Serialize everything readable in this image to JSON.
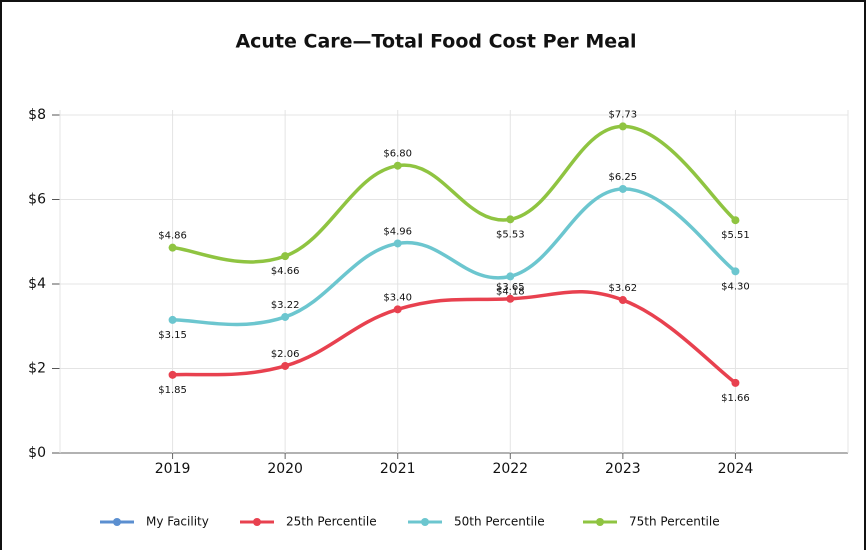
{
  "chart_data": {
    "type": "line",
    "title": "Acute Care—Total Food Cost Per Meal",
    "categories": [
      "2019",
      "2020",
      "2021",
      "2022",
      "2023",
      "2024"
    ],
    "ylim": [
      0,
      8
    ],
    "yticks": [
      {
        "value": 0,
        "label": "$0"
      },
      {
        "value": 2,
        "label": "$2"
      },
      {
        "value": 4,
        "label": "$4"
      },
      {
        "value": 6,
        "label": "$6"
      },
      {
        "value": 8,
        "label": "$8"
      }
    ],
    "grid": true,
    "legend": "bottom",
    "series": [
      {
        "name": "My Facility",
        "color": "#5b8fd0",
        "values": [
          null,
          null,
          null,
          null,
          null,
          null
        ]
      },
      {
        "name": "25th Percentile",
        "color": "#e8414f",
        "values": [
          1.85,
          2.06,
          3.4,
          3.65,
          3.62,
          1.66
        ],
        "value_labels": [
          "$1.85",
          "$2.06",
          "$3.40",
          "$3.65",
          "$3.62",
          "$1.66"
        ]
      },
      {
        "name": "50th Percentile",
        "color": "#6cc6cf",
        "values": [
          3.15,
          3.22,
          4.96,
          4.18,
          6.25,
          4.3
        ],
        "value_labels": [
          "$3.15",
          "$3.22",
          "$4.96",
          "$4.18",
          "$6.25",
          "$4.30"
        ]
      },
      {
        "name": "75th Percentile",
        "color": "#8fc441",
        "values": [
          4.86,
          4.66,
          6.8,
          5.53,
          7.73,
          5.51
        ],
        "value_labels": [
          "$4.86",
          "$4.66",
          "$6.80",
          "$5.53",
          "$7.73",
          "$5.51"
        ]
      }
    ]
  }
}
